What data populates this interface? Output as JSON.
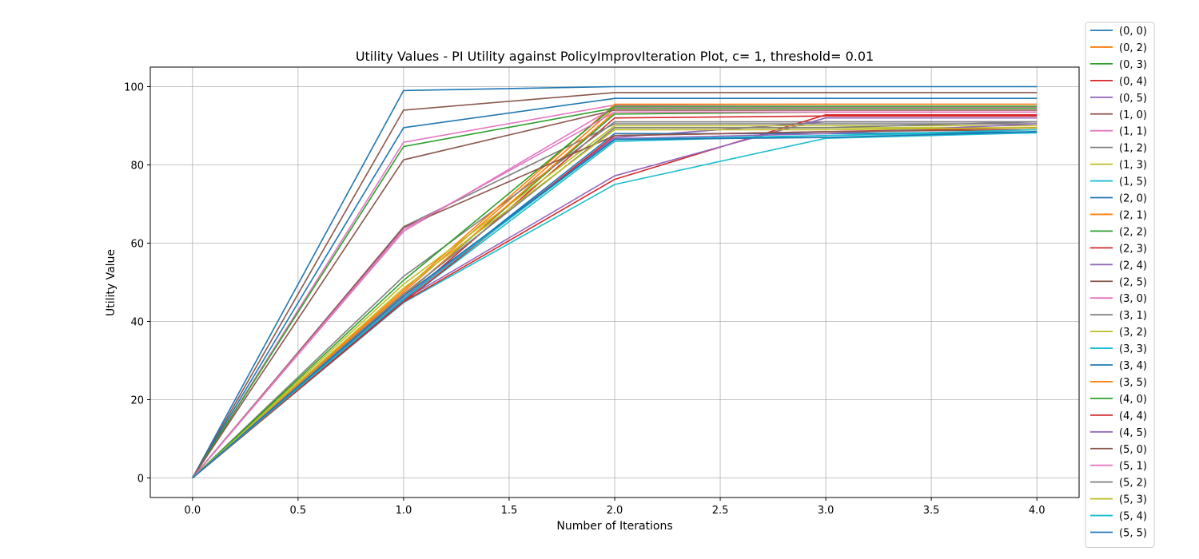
{
  "chart_data": {
    "type": "line",
    "title": "Utility Values - PI Utility against PolicyImprovIteration Plot, c= 1, threshold= 0.01",
    "xlabel": "Number of Iterations",
    "ylabel": "Utility Value",
    "xlim": [
      -0.2,
      4.2
    ],
    "ylim": [
      -5,
      105
    ],
    "xticks": [
      "0.0",
      "0.5",
      "1.0",
      "1.5",
      "2.0",
      "2.5",
      "3.0",
      "3.5",
      "4.0"
    ],
    "yticks": [
      "0",
      "20",
      "40",
      "60",
      "80",
      "100"
    ],
    "grid": true,
    "legend_position": "outside-right",
    "x": [
      0,
      1,
      2,
      3,
      4
    ],
    "series": [
      {
        "name": "(0, 0)",
        "color": "#1f77b4",
        "values": [
          0,
          99.0,
          100.0,
          100.0,
          100.0
        ]
      },
      {
        "name": "(0, 2)",
        "color": "#ff7f0e",
        "values": [
          0,
          47.5,
          94.5,
          94.5,
          94.5
        ]
      },
      {
        "name": "(0, 3)",
        "color": "#2ca02c",
        "values": [
          0,
          46.5,
          93.0,
          93.5,
          93.5
        ]
      },
      {
        "name": "(0, 4)",
        "color": "#d62728",
        "values": [
          0,
          45.5,
          92.0,
          92.5,
          92.5
        ]
      },
      {
        "name": "(0, 5)",
        "color": "#9467bd",
        "values": [
          0,
          46.0,
          87.0,
          91.0,
          91.0
        ]
      },
      {
        "name": "(1, 0)",
        "color": "#8c564b",
        "values": [
          0,
          94.0,
          98.5,
          98.5,
          98.5
        ]
      },
      {
        "name": "(1, 1)",
        "color": "#e377c2",
        "values": [
          0,
          85.8,
          95.3,
          95.5,
          95.5
        ]
      },
      {
        "name": "(1, 2)",
        "color": "#7f7f7f",
        "values": [
          0,
          51.5,
          91.0,
          91.0,
          91.0
        ]
      },
      {
        "name": "(1, 3)",
        "color": "#bcbd22",
        "values": [
          0,
          47.0,
          89.5,
          89.5,
          89.5
        ]
      },
      {
        "name": "(1, 5)",
        "color": "#17becf",
        "values": [
          0,
          44.8,
          75.0,
          86.8,
          88.2
        ]
      },
      {
        "name": "(2, 0)",
        "color": "#1f77b4",
        "values": [
          0,
          89.5,
          97.0,
          97.0,
          97.0
        ]
      },
      {
        "name": "(2, 1)",
        "color": "#ff7f0e",
        "values": [
          0,
          48.0,
          95.5,
          95.5,
          95.5
        ]
      },
      {
        "name": "(2, 2)",
        "color": "#2ca02c",
        "values": [
          0,
          84.7,
          94.5,
          94.5,
          94.5
        ]
      },
      {
        "name": "(2, 3)",
        "color": "#d62728",
        "values": [
          0,
          45.0,
          76.3,
          92.8,
          92.8
        ]
      },
      {
        "name": "(2, 4)",
        "color": "#9467bd",
        "values": [
          0,
          45.5,
          77.2,
          92.0,
          92.0
        ]
      },
      {
        "name": "(2, 5)",
        "color": "#8c564b",
        "values": [
          0,
          81.3,
          94.0,
          94.0,
          94.0
        ]
      },
      {
        "name": "(3, 0)",
        "color": "#e377c2",
        "values": [
          0,
          63.0,
          94.8,
          94.8,
          94.8
        ]
      },
      {
        "name": "(3, 1)",
        "color": "#7f7f7f",
        "values": [
          0,
          64.2,
          90.5,
          90.5,
          90.5
        ]
      },
      {
        "name": "(3, 2)",
        "color": "#bcbd22",
        "values": [
          0,
          49.5,
          90.0,
          90.0,
          90.0
        ]
      },
      {
        "name": "(3, 3)",
        "color": "#17becf",
        "values": [
          0,
          45.0,
          86.0,
          87.5,
          88.5
        ]
      },
      {
        "name": "(3, 4)",
        "color": "#1f77b4",
        "values": [
          0,
          45.5,
          88.0,
          88.0,
          88.5
        ]
      },
      {
        "name": "(3, 5)",
        "color": "#ff7f0e",
        "values": [
          0,
          46.5,
          93.5,
          93.5,
          93.5
        ]
      },
      {
        "name": "(4, 0)",
        "color": "#2ca02c",
        "values": [
          0,
          50.5,
          95.0,
          95.0,
          95.0
        ]
      },
      {
        "name": "(4, 4)",
        "color": "#d62728",
        "values": [
          0,
          45.0,
          87.5,
          88.5,
          89.5
        ]
      },
      {
        "name": "(4, 5)",
        "color": "#9467bd",
        "values": [
          0,
          46.0,
          86.7,
          88.0,
          90.5
        ]
      },
      {
        "name": "(5, 0)",
        "color": "#8c564b",
        "values": [
          0,
          64.0,
          87.5,
          88.5,
          89.0
        ]
      },
      {
        "name": "(5, 1)",
        "color": "#e377c2",
        "values": [
          0,
          63.5,
          93.5,
          93.5,
          93.5
        ]
      },
      {
        "name": "(5, 2)",
        "color": "#7f7f7f",
        "values": [
          0,
          47.0,
          89.5,
          89.5,
          91.0
        ]
      },
      {
        "name": "(5, 3)",
        "color": "#bcbd22",
        "values": [
          0,
          48.5,
          89.0,
          89.0,
          89.5
        ]
      },
      {
        "name": "(5, 4)",
        "color": "#17becf",
        "values": [
          0,
          45.8,
          86.5,
          87.5,
          89.0
        ]
      },
      {
        "name": "(5, 5)",
        "color": "#1f77b4",
        "values": [
          0,
          46.5,
          86.5,
          87.0,
          88.5
        ]
      }
    ]
  }
}
